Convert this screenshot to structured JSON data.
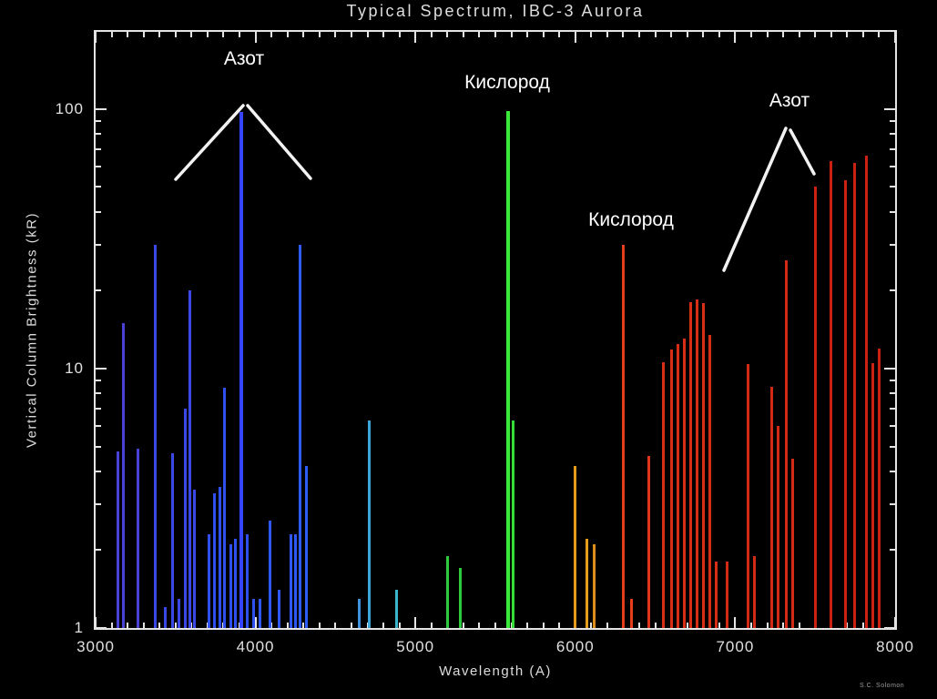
{
  "title": "Typical Spectrum, IBC-3 Aurora",
  "credit": "S.C. Solomon",
  "chart_data": {
    "type": "bar",
    "title": "Typical Spectrum, IBC-3 Aurora",
    "xlabel": "Wavelength (A)",
    "ylabel": "Vertical Column Brightness (kR)",
    "x_range": [
      3000,
      8000
    ],
    "x_ticks": [
      3000,
      4000,
      5000,
      6000,
      7000,
      8000
    ],
    "x_tick_step": 1000,
    "x_minor_tick_step": 100,
    "y_scale": "log",
    "y_range": [
      1,
      198
    ],
    "y_ticks": [
      1,
      10,
      100
    ],
    "grid": false,
    "background": "#000000",
    "axis_color": "#e4e4e4",
    "annotations": [
      {
        "text": "Азот",
        "points_to_wavelength_region": "3700-4300"
      },
      {
        "text": "Кислород",
        "points_to_wavelength_region": "5577"
      },
      {
        "text": "Кислород",
        "points_to_wavelength_region": "6300"
      },
      {
        "text": "Азот",
        "points_to_wavelength_region": "7000-7900"
      }
    ],
    "lines": [
      {
        "wavelength": 3140,
        "kR": 4.8,
        "color": "#4a42d6"
      },
      {
        "wavelength": 3175,
        "kR": 15,
        "color": "#4a42d6"
      },
      {
        "wavelength": 3265,
        "kR": 4.9,
        "color": "#4a42d6"
      },
      {
        "wavelength": 3371,
        "kR": 30,
        "color": "#3a48e6"
      },
      {
        "wavelength": 3435,
        "kR": 1.2,
        "color": "#3a48e6"
      },
      {
        "wavelength": 3480,
        "kR": 4.7,
        "color": "#3a48e6"
      },
      {
        "wavelength": 3520,
        "kR": 1.3,
        "color": "#3a48e6"
      },
      {
        "wavelength": 3563,
        "kR": 7,
        "color": "#3a48e6"
      },
      {
        "wavelength": 3590,
        "kR": 20,
        "color": "#3a48e6"
      },
      {
        "wavelength": 3620,
        "kR": 3.4,
        "color": "#3a48e6"
      },
      {
        "wavelength": 3710,
        "kR": 2.3,
        "color": "#3050ee"
      },
      {
        "wavelength": 3745,
        "kR": 3.3,
        "color": "#3050ee"
      },
      {
        "wavelength": 3775,
        "kR": 3.5,
        "color": "#3050ee"
      },
      {
        "wavelength": 3805,
        "kR": 8.4,
        "color": "#3050ee"
      },
      {
        "wavelength": 3845,
        "kR": 2.1,
        "color": "#3050ee"
      },
      {
        "wavelength": 3875,
        "kR": 2.2,
        "color": "#3050ee"
      },
      {
        "wavelength": 3914,
        "kR": 97,
        "color": "#3545ff"
      },
      {
        "wavelength": 3950,
        "kR": 2.3,
        "color": "#3050ee"
      },
      {
        "wavelength": 3990,
        "kR": 1.3,
        "color": "#3050ee"
      },
      {
        "wavelength": 4030,
        "kR": 1.3,
        "color": "#2f58f2"
      },
      {
        "wavelength": 4090,
        "kR": 2.6,
        "color": "#2f58f2"
      },
      {
        "wavelength": 4150,
        "kR": 1.4,
        "color": "#2f58f2"
      },
      {
        "wavelength": 4220,
        "kR": 2.3,
        "color": "#2f58f2"
      },
      {
        "wavelength": 4250,
        "kR": 2.3,
        "color": "#2f58f2"
      },
      {
        "wavelength": 4278,
        "kR": 30,
        "color": "#2e5cf6"
      },
      {
        "wavelength": 4320,
        "kR": 4.2,
        "color": "#2e5cf6"
      },
      {
        "wavelength": 4650,
        "kR": 1.3,
        "color": "#3f93dc"
      },
      {
        "wavelength": 4709,
        "kR": 6.3,
        "color": "#3aa6d8"
      },
      {
        "wavelength": 4880,
        "kR": 1.4,
        "color": "#3ab3cb"
      },
      {
        "wavelength": 5200,
        "kR": 1.9,
        "color": "#2fc93e"
      },
      {
        "wavelength": 5280,
        "kR": 1.7,
        "color": "#2fc93e"
      },
      {
        "wavelength": 5577,
        "kR": 98,
        "color": "#3ae93a"
      },
      {
        "wavelength": 5610,
        "kR": 6.3,
        "color": "#34dd36"
      },
      {
        "wavelength": 6000,
        "kR": 4.2,
        "color": "#e49c1c"
      },
      {
        "wavelength": 6070,
        "kR": 2.2,
        "color": "#e49c1c"
      },
      {
        "wavelength": 6120,
        "kR": 2.1,
        "color": "#dd8d1b"
      },
      {
        "wavelength": 6300,
        "kR": 30,
        "color": "#e63d1a"
      },
      {
        "wavelength": 6350,
        "kR": 1.3,
        "color": "#e63d1a"
      },
      {
        "wavelength": 6460,
        "kR": 4.6,
        "color": "#e0351a"
      },
      {
        "wavelength": 6550,
        "kR": 10.6,
        "color": "#d92e16"
      },
      {
        "wavelength": 6600,
        "kR": 11.8,
        "color": "#d92e16"
      },
      {
        "wavelength": 6640,
        "kR": 12.4,
        "color": "#d92e16"
      },
      {
        "wavelength": 6680,
        "kR": 13,
        "color": "#d92e16"
      },
      {
        "wavelength": 6720,
        "kR": 18,
        "color": "#d92e16"
      },
      {
        "wavelength": 6760,
        "kR": 18.5,
        "color": "#d92e16"
      },
      {
        "wavelength": 6800,
        "kR": 17.8,
        "color": "#d92e16"
      },
      {
        "wavelength": 6840,
        "kR": 13.5,
        "color": "#d92e16"
      },
      {
        "wavelength": 6880,
        "kR": 1.8,
        "color": "#d92e16"
      },
      {
        "wavelength": 6950,
        "kR": 1.8,
        "color": "#d22a15"
      },
      {
        "wavelength": 7080,
        "kR": 10.4,
        "color": "#d22a15"
      },
      {
        "wavelength": 7120,
        "kR": 1.9,
        "color": "#d22a15"
      },
      {
        "wavelength": 7230,
        "kR": 8.5,
        "color": "#d22a15"
      },
      {
        "wavelength": 7270,
        "kR": 6,
        "color": "#d22a15"
      },
      {
        "wavelength": 7320,
        "kR": 26,
        "color": "#d22a15"
      },
      {
        "wavelength": 7360,
        "kR": 4.5,
        "color": "#d22a15"
      },
      {
        "wavelength": 7500,
        "kR": 50,
        "color": "#ca2112"
      },
      {
        "wavelength": 7600,
        "kR": 63,
        "color": "#ca2112"
      },
      {
        "wavelength": 7690,
        "kR": 53,
        "color": "#ca2112"
      },
      {
        "wavelength": 7745,
        "kR": 62,
        "color": "#ca2112"
      },
      {
        "wavelength": 7820,
        "kR": 66,
        "color": "#ca2112"
      },
      {
        "wavelength": 7860,
        "kR": 10.5,
        "color": "#ca2112"
      },
      {
        "wavelength": 7900,
        "kR": 11.9,
        "color": "#ca2112"
      }
    ]
  }
}
